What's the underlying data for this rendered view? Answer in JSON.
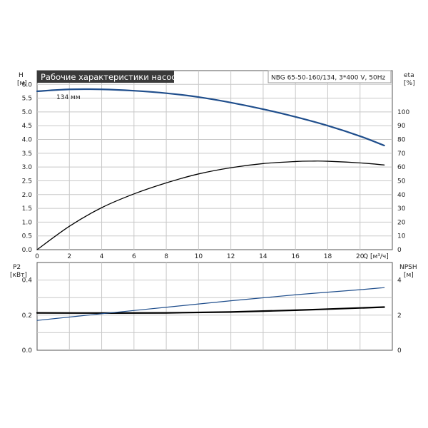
{
  "title": "Рабочие характеристики насоса",
  "pump_label": "NBG 65-50-160/134, 3*400 V, 50Hz",
  "colors": {
    "title_bg": "#3a3a3a",
    "title_fg": "#ffffff",
    "grid": "#c8c8c8",
    "blue": "#1f4e8c",
    "black": "#000000"
  },
  "chart_data": [
    {
      "type": "line",
      "title": "Рабочие характеристики насоса",
      "x_axis": {
        "label": "Q [м³/ч]",
        "range": [
          0,
          22
        ],
        "ticks": [
          "0",
          "2",
          "4",
          "6",
          "8",
          "10",
          "12",
          "14",
          "16",
          "18",
          "20"
        ]
      },
      "y_left": {
        "label": "H",
        "unit": "[м]",
        "range": [
          0,
          6.5
        ],
        "ticks": [
          "0.0",
          "0.5",
          "1.0",
          "1.5",
          "2.0",
          "2.5",
          "3.0",
          "3.5",
          "4.0",
          "4.5",
          "5.0",
          "5.5",
          "6.0"
        ]
      },
      "y_right": {
        "label": "eta",
        "unit": "[%]",
        "range": [
          0,
          130
        ],
        "ticks": [
          "0",
          "10",
          "20",
          "30",
          "40",
          "50",
          "60",
          "70",
          "80",
          "90",
          "100"
        ]
      },
      "series": [
        {
          "name": "134 мм",
          "axis": "left",
          "color": "#1f4e8c",
          "x": [
            0,
            2,
            4,
            6,
            8,
            10,
            12,
            14,
            16,
            18,
            20,
            21.5
          ],
          "y": [
            5.75,
            5.82,
            5.82,
            5.77,
            5.68,
            5.54,
            5.34,
            5.1,
            4.82,
            4.5,
            4.12,
            3.78
          ]
        },
        {
          "axis": "right",
          "color": "#000000",
          "x": [
            0,
            2,
            4,
            6,
            8,
            10,
            12,
            14,
            16,
            17,
            18,
            20,
            21.5
          ],
          "y": [
            0,
            17,
            30.5,
            40.5,
            48.5,
            55,
            59.5,
            62.5,
            64,
            64.3,
            64.2,
            63,
            61.5
          ]
        }
      ]
    },
    {
      "type": "line",
      "x_axis": {
        "range": [
          0,
          22
        ]
      },
      "y_left": {
        "label": "P2",
        "unit": "[кВт]",
        "range": [
          0,
          0.5
        ],
        "ticks": [
          "0.0",
          "0.2",
          "0.4"
        ]
      },
      "y_right": {
        "label": "NPSH",
        "unit": "[м]",
        "range": [
          0,
          5
        ],
        "ticks": [
          "0",
          "2",
          "4"
        ]
      },
      "series": [
        {
          "axis": "left",
          "color": "#000000",
          "x": [
            0,
            4,
            8,
            12,
            16,
            20,
            21.5
          ],
          "y": [
            0.213,
            0.212,
            0.213,
            0.218,
            0.228,
            0.241,
            0.246
          ]
        },
        {
          "axis": "right",
          "color": "#1f4e8c",
          "x": [
            0,
            4,
            8,
            12,
            16,
            20,
            21.5
          ],
          "y": [
            1.7,
            2.08,
            2.45,
            2.82,
            3.16,
            3.45,
            3.57
          ]
        }
      ]
    }
  ]
}
